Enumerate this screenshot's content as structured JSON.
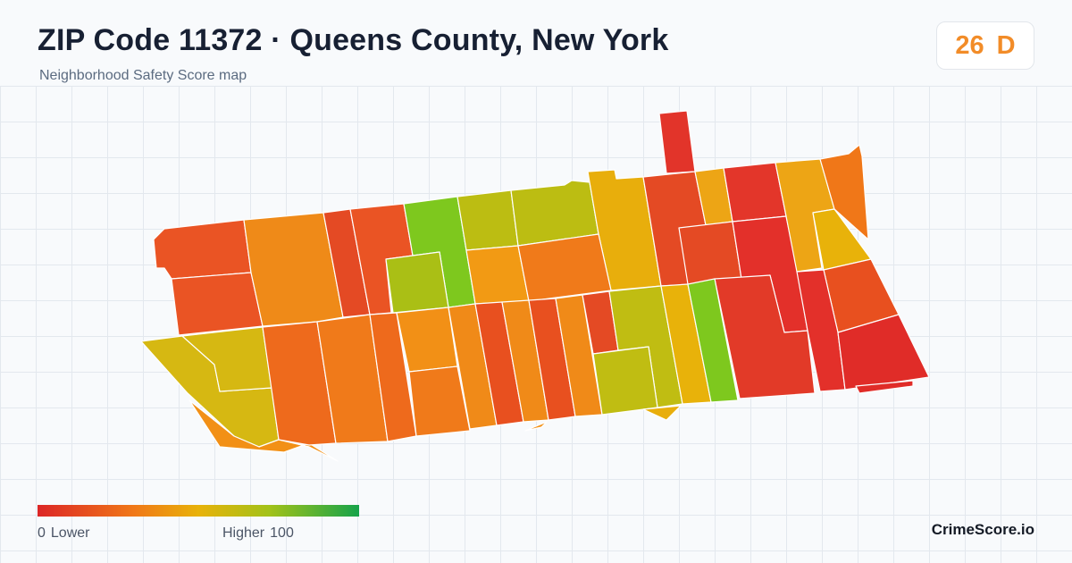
{
  "header": {
    "title": "ZIP Code 11372 · Queens County, New York",
    "subtitle": "Neighborhood Safety Score map"
  },
  "score_badge": {
    "score": "26",
    "grade": "D",
    "color": "#f28c28"
  },
  "legend": {
    "low_value": "0",
    "low_label": "Lower",
    "high_label": "Higher",
    "high_value": "100",
    "colors": [
      "#dc2626",
      "#f07818",
      "#e8b20a",
      "#a3c219",
      "#16a34a"
    ]
  },
  "brand": "CrimeScore.io",
  "map": {
    "boundary_color": "#ffffff",
    "color_scale_note": "",
    "regions": [
      {
        "id": "block-tower",
        "color": "#e2342a"
      },
      {
        "id": "block-nw-1",
        "color": "#ea5424"
      },
      {
        "id": "block-nw-2",
        "color": "#ef8a18"
      },
      {
        "id": "block-nw-3",
        "color": "#e44a24"
      },
      {
        "id": "block-nw-4",
        "color": "#ea5424"
      },
      {
        "id": "block-n-green",
        "color": "#7ec81e"
      },
      {
        "id": "block-n-olive-1",
        "color": "#bcbd12"
      },
      {
        "id": "block-n-olive-2",
        "color": "#bcbd12"
      },
      {
        "id": "block-n-yellow",
        "color": "#e8ae0c"
      },
      {
        "id": "block-ne-1",
        "color": "#e44a24"
      },
      {
        "id": "block-ne-2",
        "color": "#eda515"
      },
      {
        "id": "block-ne-3",
        "color": "#e3362a"
      },
      {
        "id": "block-ne-4",
        "color": "#eda515"
      },
      {
        "id": "block-ne-5",
        "color": "#f07718"
      },
      {
        "id": "block-mid-1",
        "color": "#f07a1a"
      },
      {
        "id": "block-mid-2",
        "color": "#f29a14"
      },
      {
        "id": "block-mid-3",
        "color": "#aabf15"
      },
      {
        "id": "block-mid-4",
        "color": "#f29a14"
      },
      {
        "id": "block-mid-5",
        "color": "#f07a1a"
      },
      {
        "id": "block-mid-6",
        "color": "#e44a24"
      },
      {
        "id": "block-e-1",
        "color": "#e3302a"
      },
      {
        "id": "block-e-2",
        "color": "#e3302a"
      },
      {
        "id": "block-e-3",
        "color": "#e23a28"
      },
      {
        "id": "block-e-4",
        "color": "#e8501f"
      },
      {
        "id": "block-e-5",
        "color": "#e8b20a"
      },
      {
        "id": "block-e-6",
        "color": "#e02c28"
      },
      {
        "id": "block-sw-1",
        "color": "#d6b812"
      },
      {
        "id": "block-s-1",
        "color": "#ee6a1c"
      },
      {
        "id": "block-s-2",
        "color": "#f07a1a"
      },
      {
        "id": "block-s-3",
        "color": "#ee6a1c"
      },
      {
        "id": "block-s-4",
        "color": "#f29016"
      },
      {
        "id": "block-s-5",
        "color": "#e8501f"
      },
      {
        "id": "block-s-6",
        "color": "#f08a18"
      },
      {
        "id": "block-s-7",
        "color": "#e44a24"
      },
      {
        "id": "block-s-8",
        "color": "#c0bd12"
      },
      {
        "id": "block-s-9",
        "color": "#e8b20a"
      },
      {
        "id": "block-s-green",
        "color": "#7ec81e"
      },
      {
        "id": "block-se-1",
        "color": "#e3302a"
      },
      {
        "id": "block-se-2",
        "color": "#e02c28"
      }
    ]
  }
}
